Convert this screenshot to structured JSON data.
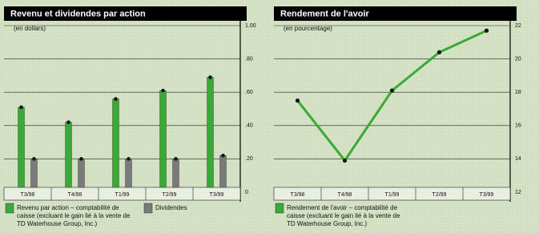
{
  "chart_data": [
    {
      "type": "bar",
      "title": "Revenu et dividendes par action",
      "subtitle": "(en dollars)",
      "categories": [
        "T3/98",
        "T4/98",
        "T1/99",
        "T2/99",
        "T3/99"
      ],
      "series": [
        {
          "name": "Revenu par action – comptabilité de caisse (excluant le gain lié à la vente de TD Waterhouse Group, Inc.)",
          "color": "#3aa935",
          "values": [
            0.51,
            0.42,
            0.56,
            0.61,
            0.69
          ]
        },
        {
          "name": "Dividendes",
          "color": "#7a7a7a",
          "values": [
            0.2,
            0.2,
            0.2,
            0.2,
            0.22
          ]
        }
      ],
      "ylim": [
        0,
        1
      ],
      "yticks": [
        0,
        {
          "value": 0.2,
          "label": ".20"
        },
        {
          "value": 0.4,
          "label": ".40"
        },
        {
          "value": 0.6,
          "label": ".60"
        },
        {
          "value": 0.8,
          "label": ".80"
        },
        {
          "value": 1,
          "label": "1.00"
        }
      ],
      "grid": true
    },
    {
      "type": "line",
      "title": "Rendement de l'avoir",
      "subtitle": "(en pourcentage)",
      "categories": [
        "T3/98",
        "T4/98",
        "T1/99",
        "T2/99",
        "T3/99"
      ],
      "series": [
        {
          "name": "Rendement de l'avoir – comptabilité de caisse (excluant le gain lié à la vente de TD Waterhouse Group, Inc.)",
          "color": "#3aa935",
          "values": [
            17.5,
            13.9,
            18.1,
            20.4,
            21.7
          ]
        }
      ],
      "ylim": [
        12,
        22
      ],
      "yticks": [
        12,
        14,
        16,
        18,
        20,
        22
      ],
      "grid": true
    }
  ]
}
